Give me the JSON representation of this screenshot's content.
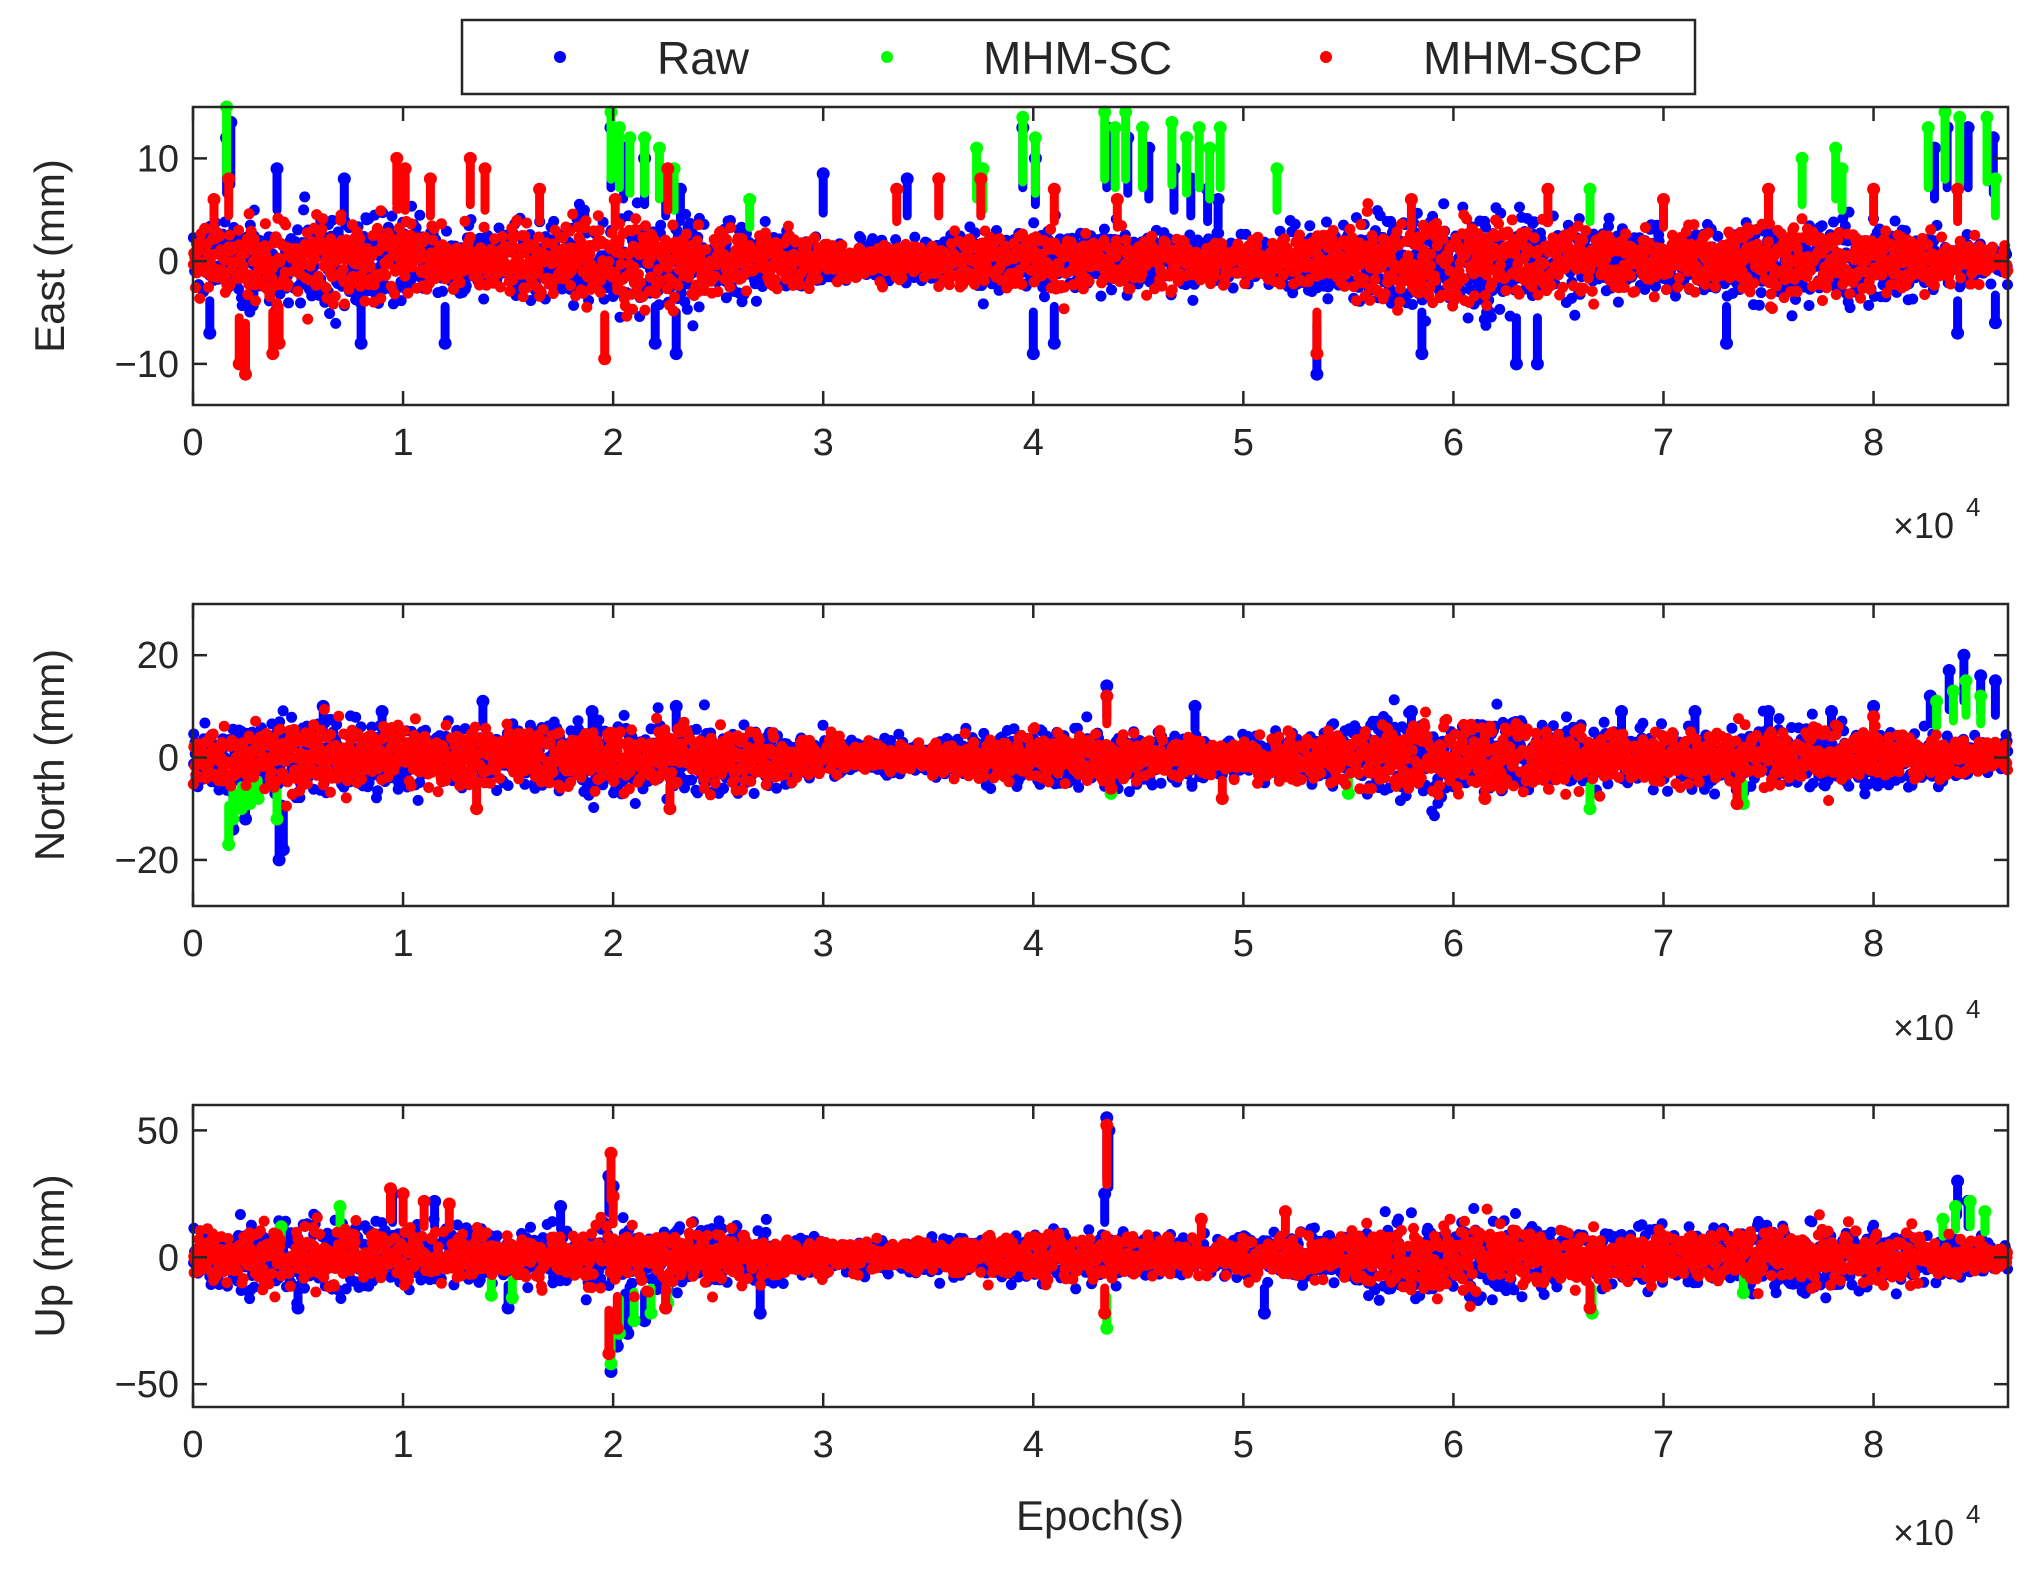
{
  "legend": {
    "entries": [
      {
        "name": "Raw",
        "color": "#0000ff"
      },
      {
        "name": "MHM-SC",
        "color": "#00ff00"
      },
      {
        "name": "MHM-SCP",
        "color": "#ff0000"
      }
    ],
    "placement": "top-center"
  },
  "chart_data": [
    {
      "type": "scatter",
      "xlabel": "",
      "ylabel": "East (mm)",
      "xlim": [
        0,
        86400
      ],
      "ylim": [
        -14,
        15
      ],
      "x_ticks": [
        0,
        10000,
        20000,
        30000,
        40000,
        50000,
        60000,
        70000,
        80000
      ],
      "x_tick_labels": [
        "0",
        "1",
        "2",
        "3",
        "4",
        "5",
        "6",
        "7",
        "8"
      ],
      "x_exponent_label": "×10",
      "x_exponent_power": "4",
      "y_ticks": [
        -10,
        0,
        10
      ],
      "y_tick_labels": [
        "−10",
        "0",
        "10"
      ],
      "grid": false,
      "series": [
        {
          "name": "Raw",
          "color": "#0000ff",
          "core_spread": 4.5,
          "outliers": [
            [
              1600,
              12
            ],
            [
              1800,
              13.5
            ],
            [
              19900,
              13
            ],
            [
              20500,
              11
            ],
            [
              21500,
              10
            ],
            [
              22500,
              8
            ],
            [
              23200,
              7
            ],
            [
              39500,
              13
            ],
            [
              40100,
              10
            ],
            [
              43500,
              13
            ],
            [
              44500,
              12
            ],
            [
              45500,
              11
            ],
            [
              46700,
              9
            ],
            [
              47500,
              8
            ],
            [
              48300,
              7
            ],
            [
              48800,
              6
            ],
            [
              82900,
              11
            ],
            [
              83500,
              13
            ],
            [
              84500,
              13
            ],
            [
              85700,
              12
            ],
            [
              800,
              -7
            ],
            [
              8000,
              -8
            ],
            [
              12000,
              -8
            ],
            [
              22000,
              -8
            ],
            [
              23000,
              -9
            ],
            [
              40000,
              -9
            ],
            [
              41000,
              -8
            ],
            [
              53500,
              -11
            ],
            [
              58500,
              -9
            ],
            [
              63000,
              -10
            ],
            [
              64000,
              -10
            ],
            [
              73000,
              -8
            ],
            [
              84000,
              -7
            ],
            [
              85800,
              -6
            ],
            [
              30000,
              8.5
            ],
            [
              34000,
              8
            ],
            [
              4000,
              9
            ],
            [
              7200,
              8
            ]
          ]
        },
        {
          "name": "MHM-SC",
          "color": "#00ff00",
          "core_spread": 0,
          "outliers": [
            [
              1600,
              15
            ],
            [
              19900,
              14.5
            ],
            [
              20300,
              13
            ],
            [
              20800,
              12
            ],
            [
              21500,
              12
            ],
            [
              22200,
              11
            ],
            [
              22900,
              9
            ],
            [
              26500,
              6
            ],
            [
              37300,
              11
            ],
            [
              37600,
              9
            ],
            [
              39500,
              14
            ],
            [
              40100,
              12
            ],
            [
              43400,
              14.5
            ],
            [
              43900,
              13
            ],
            [
              44400,
              14.5
            ],
            [
              45200,
              13
            ],
            [
              46600,
              13.5
            ],
            [
              47300,
              12
            ],
            [
              47900,
              13
            ],
            [
              48400,
              11
            ],
            [
              48900,
              13
            ],
            [
              51600,
              9
            ],
            [
              66500,
              7
            ],
            [
              76600,
              10
            ],
            [
              78200,
              11
            ],
            [
              78500,
              9
            ],
            [
              82600,
              13
            ],
            [
              83400,
              14.5
            ],
            [
              84100,
              14
            ],
            [
              85400,
              14
            ],
            [
              85800,
              8
            ]
          ]
        },
        {
          "name": "MHM-SCP",
          "color": "#ff0000",
          "core_spread": 4,
          "outliers": [
            [
              1000,
              6
            ],
            [
              1700,
              8
            ],
            [
              2200,
              -10
            ],
            [
              2500,
              -11
            ],
            [
              3800,
              -9
            ],
            [
              4100,
              -8
            ],
            [
              9700,
              10
            ],
            [
              10100,
              9
            ],
            [
              11300,
              8
            ],
            [
              13200,
              10
            ],
            [
              13900,
              9
            ],
            [
              16500,
              7
            ],
            [
              19600,
              -9.5
            ],
            [
              20100,
              6
            ],
            [
              22600,
              9
            ],
            [
              33500,
              7
            ],
            [
              35500,
              8
            ],
            [
              37500,
              8
            ],
            [
              41000,
              7
            ],
            [
              44000,
              6
            ],
            [
              53500,
              -9
            ],
            [
              58000,
              6
            ],
            [
              64500,
              7
            ],
            [
              70000,
              6
            ],
            [
              75000,
              7
            ],
            [
              80000,
              7
            ],
            [
              84000,
              7
            ]
          ]
        }
      ]
    },
    {
      "type": "scatter",
      "xlabel": "",
      "ylabel": "North (mm)",
      "xlim": [
        0,
        86400
      ],
      "ylim": [
        -29,
        30
      ],
      "x_ticks": [
        0,
        10000,
        20000,
        30000,
        40000,
        50000,
        60000,
        70000,
        80000
      ],
      "x_tick_labels": [
        "0",
        "1",
        "2",
        "3",
        "4",
        "5",
        "6",
        "7",
        "8"
      ],
      "x_exponent_label": "×10",
      "x_exponent_power": "4",
      "y_ticks": [
        -20,
        0,
        20
      ],
      "y_tick_labels": [
        "−20",
        "0",
        "20"
      ],
      "grid": false,
      "series": [
        {
          "name": "Raw",
          "color": "#0000ff",
          "core_spread": 7.5,
          "outliers": [
            [
              1900,
              -14
            ],
            [
              2500,
              -12
            ],
            [
              4100,
              -20
            ],
            [
              4300,
              -18
            ],
            [
              13800,
              11
            ],
            [
              43500,
              14
            ],
            [
              82700,
              12
            ],
            [
              83600,
              17
            ],
            [
              84300,
              20
            ],
            [
              85100,
              16
            ],
            [
              85800,
              15
            ],
            [
              6200,
              10
            ],
            [
              9000,
              9
            ],
            [
              19000,
              9
            ],
            [
              23000,
              10
            ],
            [
              47700,
              10
            ],
            [
              58000,
              9
            ],
            [
              68000,
              9
            ],
            [
              71500,
              9
            ],
            [
              75000,
              9
            ],
            [
              78000,
              9
            ],
            [
              80000,
              10
            ]
          ]
        },
        {
          "name": "MHM-SC",
          "color": "#00ff00",
          "core_spread": 0,
          "outliers": [
            [
              1700,
              -17
            ],
            [
              1900,
              -12
            ],
            [
              2300,
              -10
            ],
            [
              2700,
              -9
            ],
            [
              3100,
              -8
            ],
            [
              4000,
              -12
            ],
            [
              83000,
              11
            ],
            [
              83800,
              13
            ],
            [
              84400,
              15
            ],
            [
              85100,
              12
            ],
            [
              43700,
              -7
            ],
            [
              55000,
              -7
            ],
            [
              66500,
              -10
            ],
            [
              73800,
              -9
            ]
          ]
        },
        {
          "name": "MHM-SCP",
          "color": "#ff0000",
          "core_spread": 6.5,
          "outliers": [
            [
              13500,
              -10
            ],
            [
              22700,
              -10
            ],
            [
              43500,
              12
            ],
            [
              43700,
              -6
            ],
            [
              73500,
              -9
            ],
            [
              49000,
              -8
            ],
            [
              61500,
              -8
            ],
            [
              80000,
              8
            ]
          ]
        }
      ]
    },
    {
      "type": "scatter",
      "xlabel": "Epoch(s)",
      "ylabel": "Up (mm)",
      "xlim": [
        0,
        86400
      ],
      "ylim": [
        -59,
        60
      ],
      "x_ticks": [
        0,
        10000,
        20000,
        30000,
        40000,
        50000,
        60000,
        70000,
        80000
      ],
      "x_tick_labels": [
        "0",
        "1",
        "2",
        "3",
        "4",
        "5",
        "6",
        "7",
        "8"
      ],
      "x_exponent_label": "×10",
      "x_exponent_power": "4",
      "y_ticks": [
        -50,
        0,
        50
      ],
      "y_tick_labels": [
        "−50",
        "0",
        "50"
      ],
      "grid": false,
      "series": [
        {
          "name": "Raw",
          "color": "#0000ff",
          "core_spread": 14,
          "outliers": [
            [
              19800,
              32
            ],
            [
              20000,
              28
            ],
            [
              19900,
              -45
            ],
            [
              20200,
              -35
            ],
            [
              20700,
              -30
            ],
            [
              21500,
              -25
            ],
            [
              22500,
              -20
            ],
            [
              43500,
              55
            ],
            [
              43600,
              50
            ],
            [
              43400,
              25
            ],
            [
              84000,
              30
            ],
            [
              84500,
              22
            ],
            [
              15000,
              -20
            ],
            [
              5000,
              -20
            ],
            [
              27000,
              -22
            ],
            [
              51000,
              -22
            ],
            [
              9500,
              25
            ],
            [
              11500,
              22
            ],
            [
              17500,
              20
            ]
          ]
        },
        {
          "name": "MHM-SC",
          "color": "#00ff00",
          "core_spread": 0,
          "outliers": [
            [
              4200,
              12
            ],
            [
              7000,
              20
            ],
            [
              14200,
              -15
            ],
            [
              15200,
              -16
            ],
            [
              19900,
              -42
            ],
            [
              20300,
              -30
            ],
            [
              21000,
              -25
            ],
            [
              21800,
              -22
            ],
            [
              22600,
              -18
            ],
            [
              43500,
              -28
            ],
            [
              66600,
              -22
            ],
            [
              73800,
              -14
            ],
            [
              83300,
              15
            ],
            [
              83900,
              20
            ],
            [
              84600,
              22
            ],
            [
              85300,
              18
            ]
          ]
        },
        {
          "name": "MHM-SCP",
          "color": "#ff0000",
          "core_spread": 12,
          "outliers": [
            [
              9400,
              27
            ],
            [
              10000,
              25
            ],
            [
              11000,
              22
            ],
            [
              12200,
              21
            ],
            [
              19900,
              41
            ],
            [
              20000,
              24
            ],
            [
              19800,
              -38
            ],
            [
              20200,
              -28
            ],
            [
              43500,
              52
            ],
            [
              43400,
              -22
            ],
            [
              48000,
              15
            ],
            [
              52000,
              18
            ],
            [
              66500,
              -20
            ],
            [
              22500,
              -20
            ]
          ]
        }
      ]
    }
  ]
}
